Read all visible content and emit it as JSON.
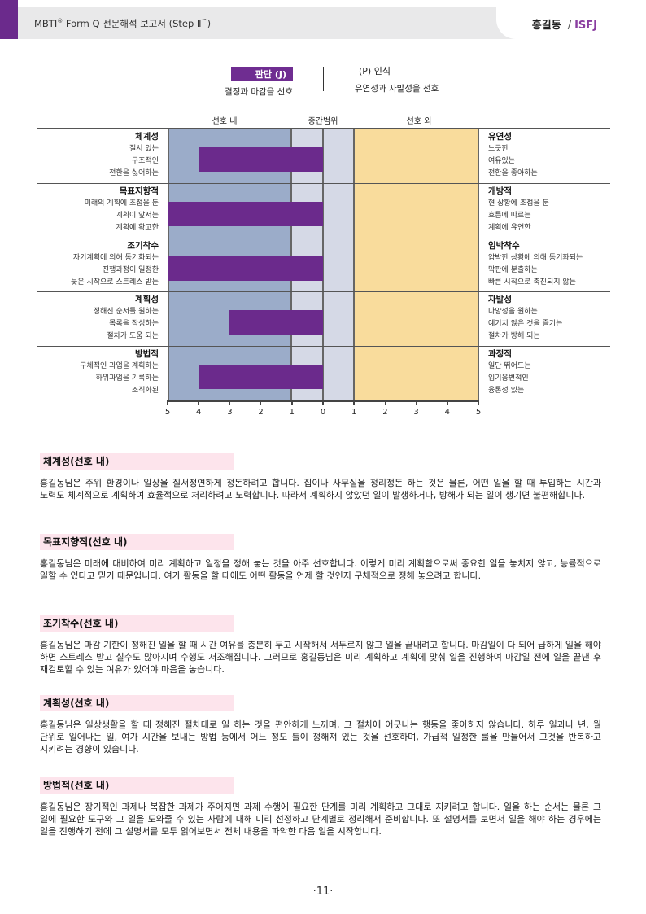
{
  "header": {
    "title_main": "MBTI",
    "title_reg": "®",
    "title_rest": " Form Q  전문해석 보고서 (Step Ⅱ",
    "title_tm": "™",
    "title_close": ")",
    "name": "홍길동",
    "type": "ISFJ"
  },
  "poles": {
    "left_name": "판단 (J)",
    "left_desc": "결정과 마감을 선호",
    "right_name": "(P) 인식",
    "right_desc": "유연성과 자발성을 선호"
  },
  "zones": [
    "선호 내",
    "중간범위",
    "선호 외"
  ],
  "colors": {
    "in_pref": "#9bacc9",
    "midzone": "#d5d9e6",
    "out_pref": "#f9dc9c",
    "bar": "#6b2a8c"
  },
  "chart_data": {
    "type": "bar",
    "x_ticks": [
      "5",
      "4",
      "3",
      "2",
      "1",
      "0",
      "1",
      "2",
      "3",
      "4",
      "5"
    ],
    "xlim": [
      -5,
      5
    ],
    "categories": [
      "체계성 / 유연성",
      "목표지향적 / 개방적",
      "조기착수 / 임박착수",
      "계획성 / 자발성",
      "방법적 / 과정적"
    ],
    "values": [
      -4,
      -5,
      -5,
      -3,
      -4
    ],
    "rows": [
      {
        "left_name": "체계성",
        "left_desc": [
          "질서 있는",
          "구조적인",
          "전환을 싫어하는"
        ],
        "right_name": "유연성",
        "right_desc": [
          "느긋한",
          "여유있는",
          "전환을 좋아하는"
        ]
      },
      {
        "left_name": "목표지향적",
        "left_desc": [
          "미래의 계획에 초점을 둔",
          "계획이 앞서는",
          "계획에 확고한"
        ],
        "right_name": "개방적",
        "right_desc": [
          "현 상황에 초점을 둔",
          "흐름에 따르는",
          "계획에 유연한"
        ]
      },
      {
        "left_name": "조기착수",
        "left_desc": [
          "자기계획에 의해 동기화되는",
          "진행과정이 일정한",
          "늦은 시작으로 스트레스 받는"
        ],
        "right_name": "임박착수",
        "right_desc": [
          "압박한 상황에 의해 동기화되는",
          "막판에 분출하는",
          "빠른 시작으로 촉진되지 않는"
        ]
      },
      {
        "left_name": "계획성",
        "left_desc": [
          "정해진 순서를 원하는",
          "목록을 작성하는",
          "절차가 도움 되는"
        ],
        "right_name": "자발성",
        "right_desc": [
          "다양성을 원하는",
          "예기치 않은 것을 즐기는",
          "절차가 방해 되는"
        ]
      },
      {
        "left_name": "방법적",
        "left_desc": [
          "구체적인 과업을 계획하는",
          "하위과업을 기록하는",
          "조직화된"
        ],
        "right_name": "과정적",
        "right_desc": [
          "일단 뛰어드는",
          "임기응변적인",
          "융통성 있는"
        ]
      }
    ]
  },
  "sections": [
    {
      "title": "체계성(선호 내)",
      "body": "홍길동님은 주위 환경이나 일상을 질서정연하게 정돈하려고 합니다. 집이나 사무실을 정리정돈 하는 것은 물론, 어떤 일을 할 때 투입하는 시간과 노력도 체계적으로 계획하여 효율적으로 처리하려고 노력합니다. 따라서 계획하지 않았던 일이 발생하거나, 방해가 되는 일이 생기면 불편해합니다."
    },
    {
      "title": "목표지향적(선호 내)",
      "body": "홍길동님은 미래에 대비하여 미리 계획하고 일정을 정해 놓는 것을 아주 선호합니다. 이렇게 미리 계획함으로써 중요한 일을 놓치지 않고, 능률적으로 일할 수 있다고 믿기 때문입니다. 여가 활동을 할 때에도 어떤 활동을 언제 할 것인지 구체적으로 정해 놓으려고 합니다."
    },
    {
      "title": "조기착수(선호 내)",
      "body": "홍길동님은 마감 기한이 정해진 일을 할 때 시간 여유를 충분히 두고 시작해서 서두르지 않고 일을 끝내려고 합니다. 마감일이 다 되어 급하게 일을 해야 하면 스트레스 받고 실수도 많아지며 수행도 저조해집니다. 그러므로 홍길동님은 미리 계획하고 계획에 맞춰 일을 진행하여 마감일 전에 일을 끝낸 후 재검토할 수 있는 여유가 있어야 마음을 놓습니다."
    },
    {
      "title": "계획성(선호 내)",
      "body": "홍길동님은 일상생활을 할 때 정해진 절차대로 일 하는 것을 편안하게 느끼며, 그 절차에 어긋나는 행동을 좋아하지 않습니다. 하루 일과나 년, 월 단위로 일어나는 일, 여가 시간을 보내는 방법 등에서 어느 정도 틀이 정해져 있는 것을 선호하며, 가급적 일정한 룰을 만들어서 그것을 반복하고 지키려는 경향이 있습니다."
    },
    {
      "title": "방법적(선호 내)",
      "body": "홍길동님은 장기적인 과제나 복잡한 과제가 주어지면 과제 수행에 필요한 단계를 미리 계획하고 그대로 지키려고 합니다. 일을 하는 순서는 물론 그 일에 필요한 도구와 그 일을 도와줄 수 있는 사람에 대해 미리 선정하고 단계별로 정리해서 준비합니다. 또 설명서를 보면서 일을 해야 하는 경우에는 일을 진행하기 전에 그 설명서를 모두 읽어보면서 전체 내용을 파악한 다음 일을 시작합니다."
    }
  ],
  "page_number": "·11·"
}
